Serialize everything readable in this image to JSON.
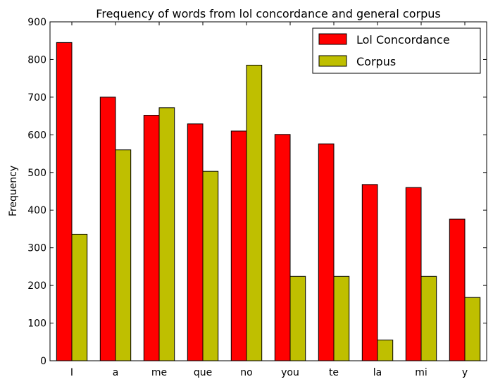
{
  "chart_data": {
    "type": "bar",
    "title": "Frequency of words from lol concordance and general corpus",
    "xlabel": "",
    "ylabel": "Frequency",
    "ylim": [
      0,
      900
    ],
    "yticks": [
      "0",
      "100",
      "200",
      "300",
      "400",
      "500",
      "600",
      "700",
      "800",
      "900"
    ],
    "categories": [
      "I",
      "a",
      "me",
      "que",
      "no",
      "you",
      "te",
      "la",
      "mi",
      "y"
    ],
    "series": [
      {
        "name": "Lol Concordance",
        "color": "#ff0000",
        "values": [
          845,
          700,
          652,
          629,
          610,
          601,
          576,
          468,
          460,
          376
        ]
      },
      {
        "name": "Corpus",
        "color": "#bfbf00",
        "values": [
          336,
          560,
          672,
          503,
          785,
          224,
          224,
          55,
          224,
          168
        ]
      }
    ],
    "grid": false,
    "legend_position": "top-right"
  }
}
